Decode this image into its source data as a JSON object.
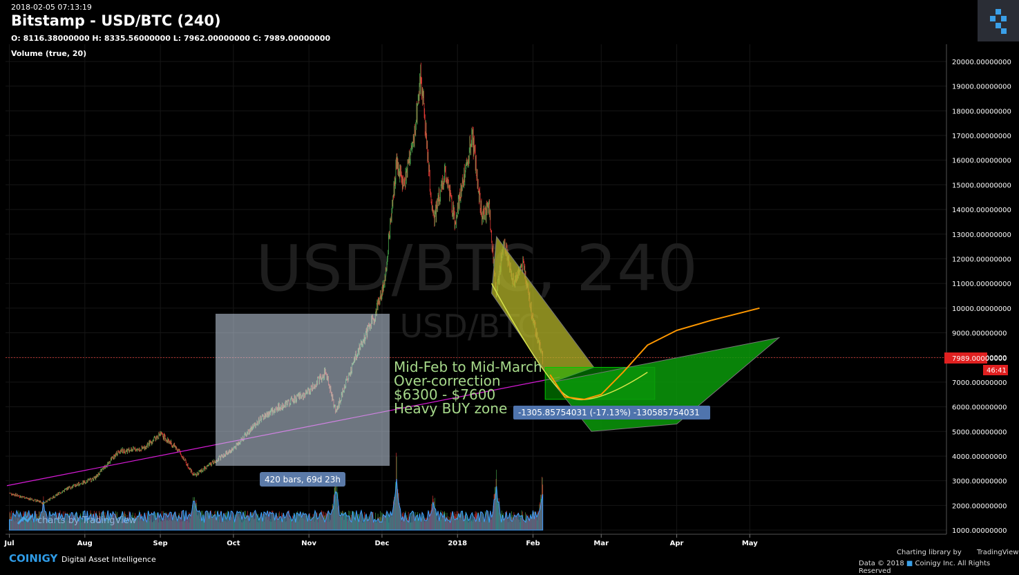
{
  "header": {
    "timestamp": "2018-02-05 07:13:19",
    "title": "Bitstamp - USD/BTC (240)",
    "ohlc": "O: 8116.38000000 H: 8335.56000000 L: 7962.00000000 C: 7989.00000000",
    "volume_indicator": "Volume (true, 20)"
  },
  "watermark": {
    "big": "USD/BTC, 240",
    "small": "USD/BTC"
  },
  "annotations": {
    "note_lines": [
      "Mid-Feb to Mid-March",
      "Over-correction",
      "$6300 - $7600",
      "Heavy BUY zone"
    ],
    "range_label": "420 bars, 69d 23h",
    "measure_label": "-1305.85754031 (-17.13%) -130585754031",
    "price_tag": "7989.00000000",
    "countdown_tag": "46:41"
  },
  "footer": {
    "brand": "COINIGY",
    "tagline": "Digital Asset Intelligence",
    "charting": "Charting library by",
    "tv": "TradingView",
    "copyright": "Data © 2018",
    "copyright2": "Coinigy Inc. All Rights Reserved",
    "tv_watermark": "charts by TradingView"
  },
  "colors": {
    "bg": "#000000",
    "up": "#4caf50",
    "down": "#e53935",
    "trend": "#d81bd8",
    "forecast": "#ff9800",
    "price_line": "#e53935",
    "buy_zone": "#00c800",
    "drop_zone": "#b5b52a"
  },
  "chart_data": {
    "type": "candlestick",
    "exchange": "Bitstamp",
    "pair": "USD/BTC",
    "interval": "240",
    "x_tick_labels": [
      "Jul",
      "Aug",
      "Sep",
      "Oct",
      "Nov",
      "Dec",
      "2018",
      "Feb",
      "Mar",
      "Apr",
      "May"
    ],
    "y_tick_labels": [
      "1000.00000000",
      "2000.00000000",
      "3000.00000000",
      "4000.00000000",
      "5000.00000000",
      "6000.00000000",
      "7000.00000000",
      "8000.00000000",
      "9000.00000000",
      "10000.00000000",
      "11000.00000000",
      "12000.00000000",
      "13000.00000000",
      "14000.00000000",
      "15000.00000000",
      "16000.00000000",
      "17000.00000000",
      "18000.00000000",
      "19000.00000000",
      "20000.00000000"
    ],
    "ylim": [
      1000,
      20000
    ],
    "price_path": [
      [
        "2017-07-01",
        2500
      ],
      [
        "2017-07-15",
        2100
      ],
      [
        "2017-07-25",
        2700
      ],
      [
        "2017-08-05",
        3100
      ],
      [
        "2017-08-15",
        4200
      ],
      [
        "2017-08-25",
        4300
      ],
      [
        "2017-09-01",
        4900
      ],
      [
        "2017-09-08",
        4300
      ],
      [
        "2017-09-15",
        3200
      ],
      [
        "2017-09-22",
        3700
      ],
      [
        "2017-10-01",
        4300
      ],
      [
        "2017-10-12",
        5500
      ],
      [
        "2017-10-20",
        6000
      ],
      [
        "2017-11-01",
        6600
      ],
      [
        "2017-11-08",
        7400
      ],
      [
        "2017-11-12",
        5800
      ],
      [
        "2017-11-20",
        8000
      ],
      [
        "2017-11-28",
        9700
      ],
      [
        "2017-12-02",
        11000
      ],
      [
        "2017-12-07",
        16000
      ],
      [
        "2017-12-10",
        15000
      ],
      [
        "2017-12-14",
        16800
      ],
      [
        "2017-12-17",
        19500
      ],
      [
        "2017-12-22",
        13500
      ],
      [
        "2017-12-27",
        15500
      ],
      [
        "2017-12-31",
        13500
      ],
      [
        "2018-01-07",
        17000
      ],
      [
        "2018-01-11",
        13800
      ],
      [
        "2018-01-14",
        14000
      ],
      [
        "2018-01-17",
        10500
      ],
      [
        "2018-01-20",
        12800
      ],
      [
        "2018-01-24",
        11000
      ],
      [
        "2018-01-28",
        11800
      ],
      [
        "2018-02-01",
        9500
      ],
      [
        "2018-02-05",
        7989
      ]
    ],
    "volume_peaks": [
      [
        "2017-07-15",
        2400
      ],
      [
        "2017-09-15",
        2700
      ],
      [
        "2017-11-12",
        3600
      ],
      [
        "2017-12-07",
        4400
      ],
      [
        "2017-12-22",
        2900
      ],
      [
        "2018-01-17",
        3600
      ],
      [
        "2018-02-05",
        3700
      ]
    ],
    "last_close": 7989,
    "trendline": [
      [
        "2017-06-30",
        2800
      ],
      [
        "2018-02-12",
        7200
      ]
    ],
    "forecast_curve": [
      [
        "2018-02-08",
        7300
      ],
      [
        "2018-02-14",
        6400
      ],
      [
        "2018-02-22",
        6300
      ],
      [
        "2018-03-01",
        6500
      ],
      [
        "2018-03-10",
        7400
      ],
      [
        "2018-03-20",
        8500
      ],
      [
        "2018-04-01",
        9100
      ],
      [
        "2018-04-15",
        9500
      ],
      [
        "2018-05-05",
        10000
      ]
    ],
    "buy_zone_low": 6300,
    "buy_zone_high": 7600
  }
}
